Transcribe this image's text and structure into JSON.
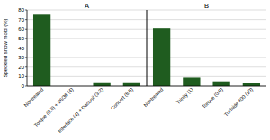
{
  "chart_data": [
    {
      "type": "bar",
      "title": "A",
      "y_label": "Speckled snow mold (%)",
      "categories": [
        "Nontreated",
        "Torque (0.8) + 26/36 (4)",
        "Interface (4) + Daconil (3.2)",
        "Concert (8.5)"
      ],
      "values": [
        75,
        0,
        4,
        4
      ],
      "color": "#1f5c1f",
      "ylim": [
        0,
        80
      ],
      "yticks": [
        0,
        10,
        20,
        30,
        40,
        50,
        60,
        70,
        80
      ],
      "grid": true
    },
    {
      "type": "bar",
      "title": "B",
      "categories": [
        "Nontreated",
        "Trinity (1)",
        "Torque (0.9)",
        "Turfside 400 (10)"
      ],
      "values": [
        61,
        9,
        5,
        3
      ],
      "color": "#1f5c1f",
      "ylim": [
        0,
        80
      ],
      "yticks": [
        0,
        10,
        20,
        30,
        40,
        50,
        60,
        70,
        80
      ],
      "grid": true,
      "tick_labels": "x"
    }
  ]
}
